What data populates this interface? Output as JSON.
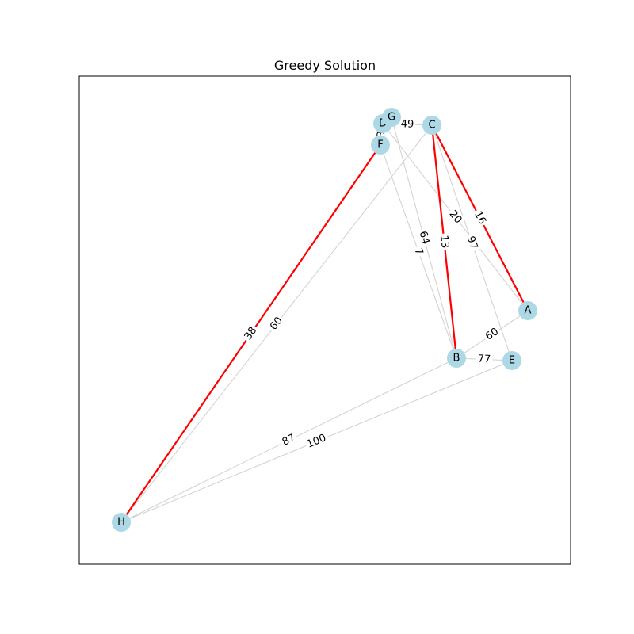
{
  "title": "Greedy Solution",
  "colors": {
    "node_fill": "#add8e6",
    "edge_default": "#d3d3d3",
    "edge_selected": "#ff0000",
    "frame": "#000000",
    "background": "#ffffff"
  },
  "nodes": [
    {
      "id": "A",
      "label": "A"
    },
    {
      "id": "B",
      "label": "B"
    },
    {
      "id": "C",
      "label": "C"
    },
    {
      "id": "D",
      "label": "D"
    },
    {
      "id": "E",
      "label": "E"
    },
    {
      "id": "F",
      "label": "F"
    },
    {
      "id": "G",
      "label": "G"
    },
    {
      "id": "H",
      "label": "H"
    }
  ],
  "edges": [
    {
      "source": "D",
      "target": "C",
      "weight": "49",
      "selected": false
    },
    {
      "source": "D",
      "target": "A",
      "weight": "20",
      "selected": false
    },
    {
      "source": "G",
      "target": "B",
      "weight": "64",
      "selected": false
    },
    {
      "source": "F",
      "target": "B",
      "weight": "7",
      "selected": false
    },
    {
      "source": "C",
      "target": "E",
      "weight": "97",
      "selected": false
    },
    {
      "source": "C",
      "target": "H",
      "weight": "60",
      "selected": false
    },
    {
      "source": "A",
      "target": "B",
      "weight": "60",
      "selected": false
    },
    {
      "source": "B",
      "target": "E",
      "weight": "77",
      "selected": false
    },
    {
      "source": "B",
      "target": "H",
      "weight": "87",
      "selected": false
    },
    {
      "source": "E",
      "target": "H",
      "weight": "100",
      "selected": false
    },
    {
      "source": "D",
      "target": "F",
      "weight": "3",
      "selected": false
    },
    {
      "source": "C",
      "target": "A",
      "weight": "16",
      "selected": true
    },
    {
      "source": "C",
      "target": "B",
      "weight": "13",
      "selected": true
    },
    {
      "source": "F",
      "target": "H",
      "weight": "38",
      "selected": true
    }
  ]
}
